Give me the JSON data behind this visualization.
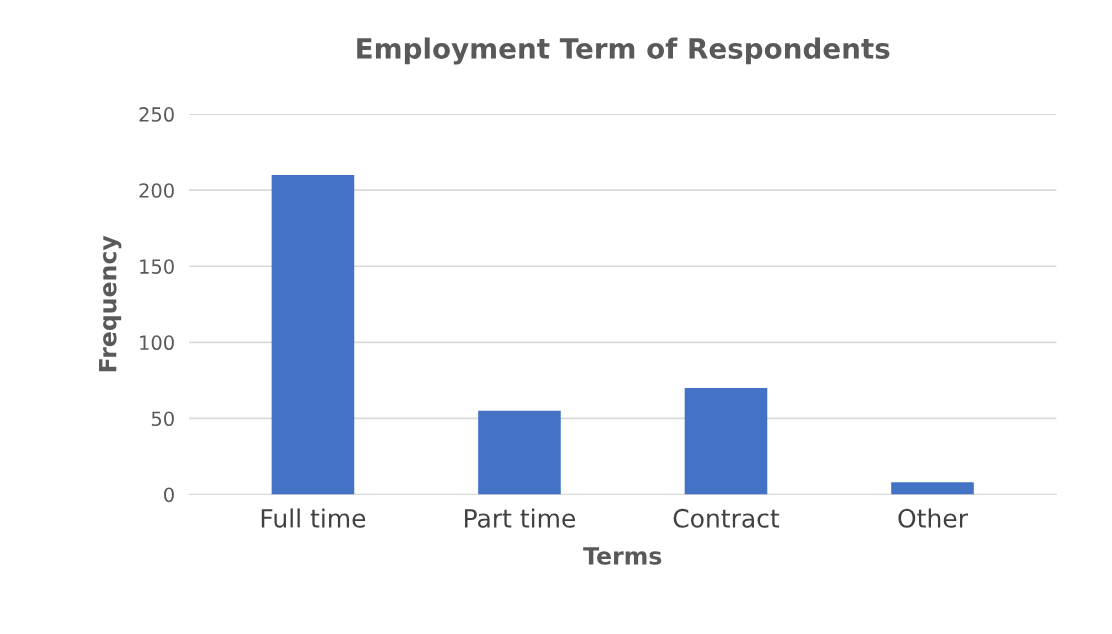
{
  "chart_data": {
    "type": "bar",
    "title": "Employment Term of Respondents",
    "xlabel": "Terms",
    "ylabel": "Frequency",
    "categories": [
      "Full time",
      "Part time",
      "Contract",
      "Other"
    ],
    "values": [
      210,
      55,
      70,
      8
    ],
    "color": "#4472c4",
    "ylim": [
      0,
      250
    ],
    "yticks": [
      0,
      50,
      100,
      150,
      200,
      250
    ],
    "grid": "y"
  }
}
